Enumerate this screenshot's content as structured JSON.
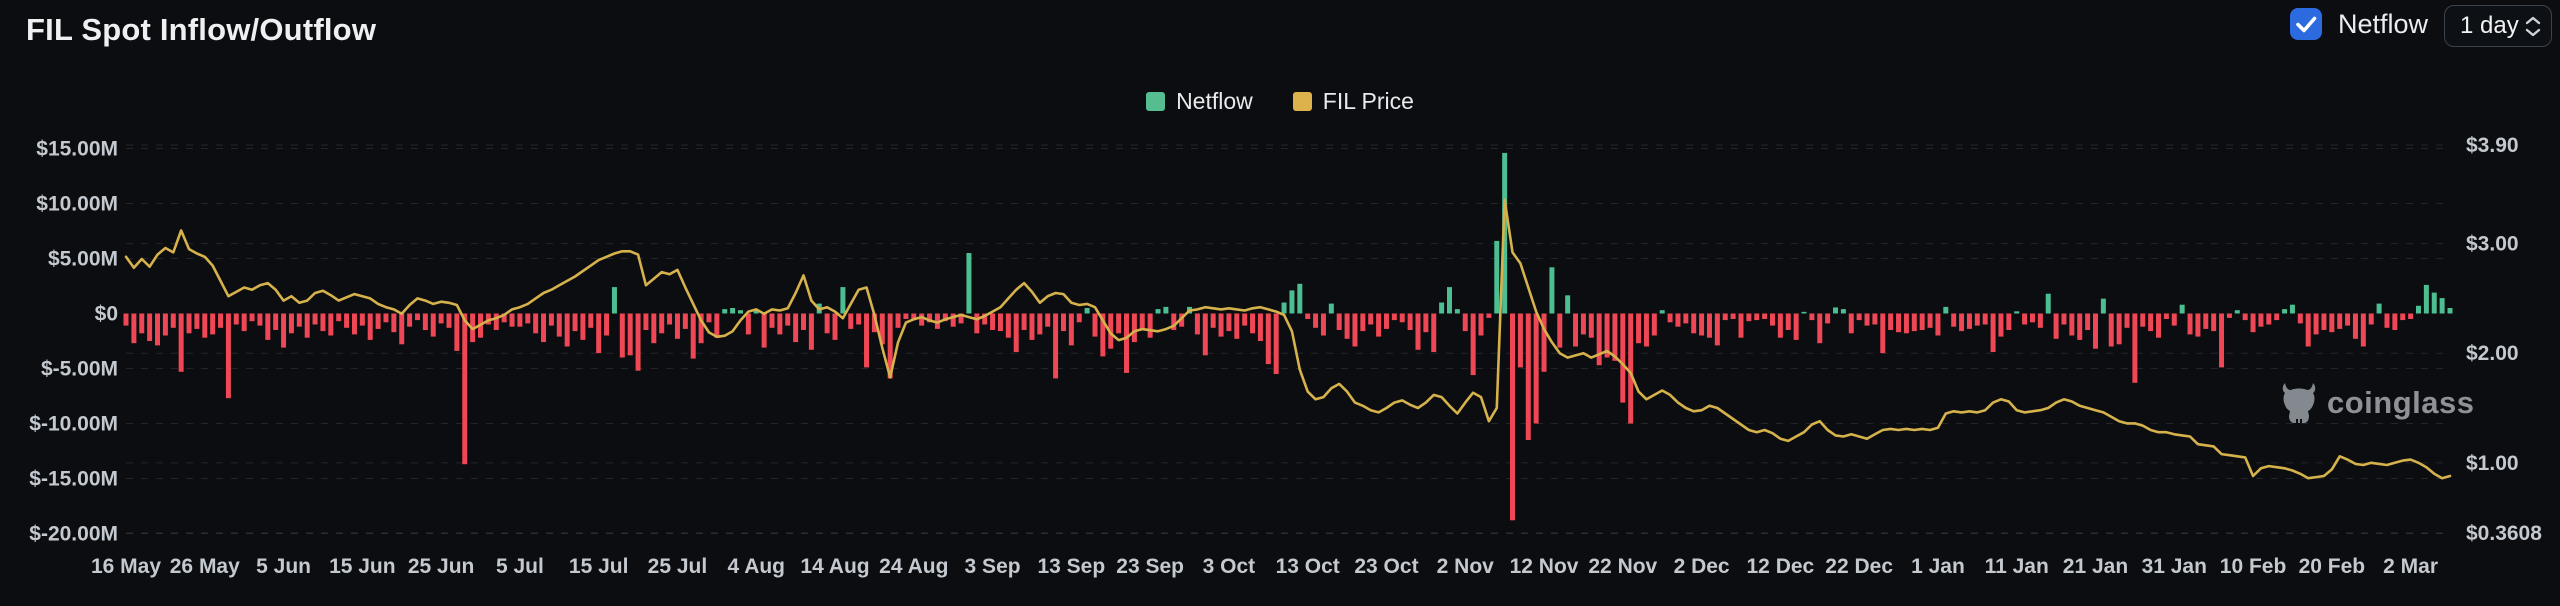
{
  "header": {
    "title": "FIL Spot Inflow/Outflow",
    "netflow_label": "Netflow",
    "interval_value": "1 day"
  },
  "legend": {
    "items": [
      {
        "label": "Netflow",
        "color": "#55bd90"
      },
      {
        "label": "FIL Price",
        "color": "#ddb14b"
      }
    ]
  },
  "watermark": {
    "text": "coinglass"
  },
  "colors": {
    "background": "#0b0d10",
    "checkbox_blue": "#2b6bdf",
    "bar_positive": "#4cbe92",
    "bar_negative": "#ef4755",
    "price_line": "#d6b24c",
    "axis_text": "#c4c9d0",
    "gridline": "rgba(255,255,255,0.10)"
  },
  "chart_data": {
    "type": "bar+line",
    "title": "FIL Spot Inflow/Outflow",
    "x_start": "16 May",
    "x_end": "2 Mar",
    "x_tick_labels": [
      "16 May",
      "26 May",
      "5 Jun",
      "15 Jun",
      "25 Jun",
      "5 Jul",
      "15 Jul",
      "25 Jul",
      "4 Aug",
      "14 Aug",
      "24 Aug",
      "3 Sep",
      "13 Sep",
      "23 Sep",
      "3 Oct",
      "13 Oct",
      "23 Oct",
      "2 Nov",
      "12 Nov",
      "22 Nov",
      "2 Dec",
      "12 Dec",
      "22 Dec",
      "1 Jan",
      "11 Jan",
      "21 Jan",
      "31 Jan",
      "10 Feb",
      "20 Feb",
      "2 Mar"
    ],
    "x_tick_day_step": 10,
    "left_axis": {
      "title": "Netflow (USD)",
      "labels": [
        "$15.00M",
        "$10.00M",
        "$5.00M",
        "$0",
        "$-5.00M",
        "$-10.00M",
        "$-15.00M",
        "$-20.00M"
      ],
      "values": [
        15,
        10,
        5,
        0,
        -5,
        -10,
        -15,
        -20
      ],
      "min": -20,
      "max": 15
    },
    "right_axis": {
      "title": "FIL Price (USD)",
      "labels": [
        "$3.90",
        "$3.00",
        "$2.00",
        "$1.00",
        "$0.3608"
      ],
      "values": [
        3.9,
        3.0,
        2.0,
        1.0,
        0.3608
      ],
      "min": 0.3608,
      "max": 3.9
    },
    "grid": "dashed",
    "legend_position": "top-center",
    "series": [
      {
        "name": "Netflow",
        "type": "bar",
        "unit": "USD millions",
        "values": [
          -1.1,
          -2.7,
          -1.8,
          -2.5,
          -2.9,
          -2.0,
          -1.3,
          -5.3,
          -1.8,
          -1.4,
          -2.2,
          -1.9,
          -1.3,
          -7.7,
          -1.0,
          -1.6,
          -0.7,
          -1.1,
          -2.4,
          -1.5,
          -3.1,
          -1.8,
          -1.2,
          -2.2,
          -1.0,
          -1.6,
          -2.0,
          -0.7,
          -1.3,
          -1.9,
          -1.1,
          -2.4,
          -1.4,
          -0.8,
          -1.7,
          -2.8,
          -1.2,
          -0.6,
          -1.5,
          -2.1,
          -0.9,
          -1.3,
          -3.4,
          -13.7,
          -2.6,
          -2.2,
          -1.0,
          -1.5,
          -0.8,
          -1.2,
          -1.2,
          -0.9,
          -1.8,
          -2.6,
          -1.1,
          -2.1,
          -3.0,
          -1.6,
          -2.4,
          -1.3,
          -3.6,
          -2.0,
          2.4,
          -4.0,
          -3.8,
          -5.2,
          -1.5,
          -2.7,
          -1.8,
          -1.0,
          -2.3,
          -1.4,
          -4.1,
          -2.7,
          -0.8,
          -2.2,
          0.4,
          0.5,
          0.3,
          -1.9,
          0.3,
          -3.1,
          -1.3,
          -1.9,
          -1.1,
          -2.6,
          -1.5,
          -3.3,
          0.9,
          -1.8,
          -2.4,
          2.4,
          -1.4,
          -1.0,
          -4.9,
          -1.7,
          -2.8,
          -5.9,
          -1.3,
          -0.5,
          -0.6,
          -1.1,
          -0.8,
          -1.4,
          -0.7,
          -1.2,
          -0.9,
          5.5,
          -1.8,
          -1.0,
          -1.5,
          -1.6,
          -2.2,
          -3.5,
          -1.5,
          -2.4,
          -1.9,
          -1.2,
          -5.9,
          -1.6,
          -2.9,
          -0.8,
          0.5,
          -2.1,
          -3.9,
          -3.2,
          -1.8,
          -5.4,
          -2.6,
          -1.4,
          -2.2,
          0.4,
          0.6,
          -1.5,
          -1.2,
          0.6,
          -1.9,
          -3.8,
          -1.3,
          -2.1,
          -1.6,
          -2.3,
          -1.1,
          -1.8,
          -2.5,
          -4.6,
          -5.5,
          1.0,
          2.1,
          2.7,
          -0.5,
          -1.3,
          -2.0,
          0.9,
          -1.5,
          -2.3,
          -3.0,
          -1.6,
          -1.0,
          -2.1,
          -1.4,
          -0.6,
          -0.8,
          -1.5,
          -3.3,
          -1.7,
          -3.5,
          1.0,
          2.4,
          0.4,
          -1.6,
          -5.6,
          -2.0,
          -0.4,
          6.6,
          14.6,
          -18.8,
          -4.9,
          -11.5,
          -10.0,
          -5.3,
          4.2,
          -3.1,
          1.65,
          -3.0,
          -1.9,
          -2.2,
          -4.7,
          -4.0,
          -4.3,
          -8.1,
          -10.0,
          -2.7,
          -3.0,
          -2.0,
          0.3,
          -0.8,
          -1.2,
          -0.9,
          -1.8,
          -2.0,
          -2.2,
          -2.9,
          -0.6,
          -0.5,
          -2.2,
          -0.7,
          -0.6,
          -0.5,
          -1.1,
          -2.2,
          -1.5,
          -2.4,
          0.15,
          -0.6,
          -2.7,
          -0.9,
          0.55,
          0.4,
          -1.8,
          -0.6,
          -1.1,
          -1.0,
          -3.6,
          -1.5,
          -1.7,
          -1.8,
          -1.6,
          -1.5,
          -1.3,
          -2.0,
          0.6,
          -1.2,
          -1.6,
          -1.4,
          -1.1,
          -1.0,
          -3.5,
          -2.1,
          -1.5,
          0.2,
          -1.0,
          -0.8,
          -1.3,
          1.8,
          -2.3,
          -1.0,
          -2.0,
          -2.4,
          -1.5,
          -3.2,
          1.35,
          -3.0,
          -2.8,
          -1.3,
          -6.3,
          -1.2,
          -1.6,
          -2.2,
          -0.5,
          -1.1,
          0.8,
          -1.9,
          -2.1,
          -1.4,
          -1.6,
          -4.9,
          -0.4,
          0.3,
          -0.6,
          -1.7,
          -1.2,
          -1.0,
          -0.6,
          0.4,
          0.8,
          -0.9,
          -3.0,
          -1.9,
          -1.5,
          -1.7,
          -1.4,
          -1.1,
          -2.3,
          -3.0,
          -1.0,
          0.9,
          -1.3,
          -1.5,
          -0.6,
          -0.5,
          0.7,
          2.6,
          1.9,
          1.4,
          0.5
        ]
      },
      {
        "name": "FIL Price",
        "type": "line",
        "unit": "USD",
        "values": [
          2.88,
          2.78,
          2.86,
          2.79,
          2.9,
          2.96,
          2.92,
          3.12,
          2.95,
          2.91,
          2.88,
          2.8,
          2.66,
          2.52,
          2.56,
          2.6,
          2.58,
          2.62,
          2.64,
          2.58,
          2.48,
          2.52,
          2.46,
          2.48,
          2.55,
          2.57,
          2.53,
          2.48,
          2.51,
          2.54,
          2.52,
          2.5,
          2.45,
          2.42,
          2.4,
          2.36,
          2.44,
          2.5,
          2.48,
          2.45,
          2.47,
          2.46,
          2.44,
          2.3,
          2.22,
          2.26,
          2.3,
          2.32,
          2.35,
          2.4,
          2.42,
          2.45,
          2.5,
          2.55,
          2.58,
          2.62,
          2.66,
          2.7,
          2.75,
          2.8,
          2.85,
          2.88,
          2.91,
          2.93,
          2.93,
          2.9,
          2.62,
          2.68,
          2.74,
          2.72,
          2.76,
          2.6,
          2.45,
          2.3,
          2.19,
          2.15,
          2.16,
          2.2,
          2.3,
          2.38,
          2.4,
          2.36,
          2.4,
          2.39,
          2.41,
          2.55,
          2.71,
          2.48,
          2.4,
          2.42,
          2.38,
          2.32,
          2.45,
          2.58,
          2.6,
          2.35,
          2.05,
          1.78,
          2.1,
          2.28,
          2.31,
          2.33,
          2.3,
          2.28,
          2.31,
          2.33,
          2.35,
          2.33,
          2.31,
          2.34,
          2.38,
          2.42,
          2.5,
          2.58,
          2.64,
          2.56,
          2.46,
          2.52,
          2.55,
          2.54,
          2.46,
          2.44,
          2.45,
          2.42,
          2.3,
          2.18,
          2.12,
          2.14,
          2.2,
          2.22,
          2.21,
          2.2,
          2.22,
          2.25,
          2.32,
          2.39,
          2.4,
          2.42,
          2.41,
          2.4,
          2.41,
          2.4,
          2.39,
          2.41,
          2.42,
          2.4,
          2.38,
          2.35,
          2.2,
          1.85,
          1.65,
          1.58,
          1.6,
          1.68,
          1.72,
          1.65,
          1.55,
          1.52,
          1.48,
          1.46,
          1.5,
          1.55,
          1.57,
          1.53,
          1.5,
          1.55,
          1.62,
          1.6,
          1.52,
          1.45,
          1.55,
          1.64,
          1.6,
          1.38,
          1.5,
          3.4,
          2.92,
          2.82,
          2.6,
          2.38,
          2.22,
          2.1,
          2.0,
          1.96,
          1.98,
          2.0,
          1.96,
          1.99,
          2.02,
          1.97,
          1.9,
          1.82,
          1.65,
          1.58,
          1.62,
          1.66,
          1.62,
          1.55,
          1.5,
          1.47,
          1.48,
          1.52,
          1.5,
          1.45,
          1.4,
          1.35,
          1.3,
          1.28,
          1.3,
          1.27,
          1.22,
          1.2,
          1.24,
          1.28,
          1.35,
          1.38,
          1.3,
          1.25,
          1.24,
          1.26,
          1.24,
          1.22,
          1.26,
          1.3,
          1.31,
          1.3,
          1.31,
          1.3,
          1.31,
          1.3,
          1.32,
          1.45,
          1.47,
          1.46,
          1.47,
          1.46,
          1.48,
          1.55,
          1.58,
          1.56,
          1.48,
          1.46,
          1.47,
          1.48,
          1.5,
          1.55,
          1.58,
          1.56,
          1.52,
          1.5,
          1.48,
          1.46,
          1.42,
          1.38,
          1.36,
          1.36,
          1.34,
          1.3,
          1.28,
          1.28,
          1.26,
          1.25,
          1.24,
          1.17,
          1.16,
          1.15,
          1.08,
          1.07,
          1.06,
          1.05,
          0.88,
          0.95,
          0.97,
          0.96,
          0.95,
          0.93,
          0.9,
          0.86,
          0.87,
          0.88,
          0.94,
          1.06,
          1.03,
          0.99,
          0.98,
          1.0,
          0.99,
          0.98,
          1.0,
          1.02,
          1.03,
          1.0,
          0.96,
          0.9,
          0.86,
          0.88
        ]
      }
    ]
  }
}
